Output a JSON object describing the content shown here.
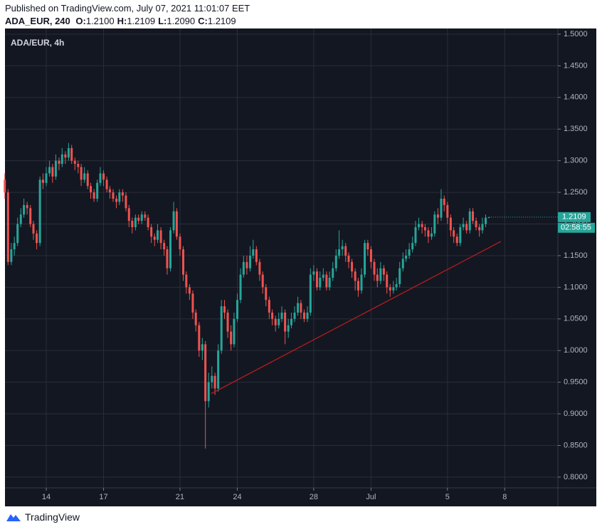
{
  "header": {
    "published": "Published on TradingView.com, July 07, 2021 11:01:07 EET",
    "symbol": "ADA_EUR, 240",
    "ohlc": [
      {
        "label": "O:",
        "value": "1.2100"
      },
      {
        "label": "H:",
        "value": "1.2109"
      },
      {
        "label": "L:",
        "value": "1.2090"
      },
      {
        "label": "C:",
        "value": "1.2109"
      }
    ]
  },
  "footer": {
    "brand": "TradingView"
  },
  "chart_data": {
    "type": "candlestick",
    "title": "ADA/EUR, 4h",
    "up_color": "#26a69a",
    "down_color": "#ef5350",
    "background": "#131722",
    "grid": true,
    "grid_color": "#2a2e39",
    "last_price_label": "1.2109",
    "countdown": "02:58:55",
    "xlim": [
      11.84,
      40.78
    ],
    "ylim": [
      0.783,
      1.509
    ],
    "xticks": [
      14,
      17,
      21,
      24,
      28,
      {
        "value": 31,
        "label": "Jul"
      },
      {
        "value": 35,
        "label": "5"
      },
      {
        "value": 38,
        "label": "8"
      }
    ],
    "yticks": [
      {
        "value": 0.8,
        "label": "0.8000"
      },
      {
        "value": 0.85,
        "label": "0.8500"
      },
      {
        "value": 0.9,
        "label": "0.9000"
      },
      {
        "value": 0.95,
        "label": "0.9500"
      },
      {
        "value": 1.0,
        "label": "1.0000"
      },
      {
        "value": 1.05,
        "label": "1.0500"
      },
      {
        "value": 1.1,
        "label": "1.1000"
      },
      {
        "value": 1.15,
        "label": "1.1500"
      },
      {
        "value": 1.2,
        "label": "1.2000"
      },
      {
        "value": 1.25,
        "label": "1.2500"
      },
      {
        "value": 1.3,
        "label": "1.3000"
      },
      {
        "value": 1.35,
        "label": "1.3500"
      },
      {
        "value": 1.4,
        "label": "1.4000"
      },
      {
        "value": 1.45,
        "label": "1.4500"
      },
      {
        "value": 1.5,
        "label": "1.5000"
      }
    ],
    "trendline": {
      "x": [
        22.64,
        37.8
      ],
      "y": [
        0.932,
        1.1725
      ],
      "color": "#b71c1c"
    },
    "x": [
      11.83,
      12,
      12.17,
      12.33,
      12.5,
      12.67,
      12.83,
      13,
      13.17,
      13.33,
      13.5,
      13.67,
      13.83,
      14,
      14.17,
      14.33,
      14.5,
      14.67,
      14.83,
      15,
      15.17,
      15.33,
      15.5,
      15.67,
      15.83,
      16,
      16.17,
      16.33,
      16.5,
      16.67,
      16.83,
      17,
      17.17,
      17.33,
      17.5,
      17.67,
      17.83,
      18,
      18.17,
      18.33,
      18.5,
      18.67,
      18.83,
      19,
      19.17,
      19.33,
      19.5,
      19.67,
      19.83,
      20,
      20.17,
      20.33,
      20.5,
      20.67,
      20.83,
      21,
      21.17,
      21.33,
      21.5,
      21.67,
      21.83,
      22,
      22.17,
      22.33,
      22.5,
      22.67,
      22.83,
      23,
      23.17,
      23.33,
      23.5,
      23.67,
      23.83,
      24,
      24.17,
      24.33,
      24.5,
      24.67,
      24.83,
      25,
      25.17,
      25.33,
      25.5,
      25.67,
      25.83,
      26,
      26.17,
      26.33,
      26.5,
      26.67,
      26.83,
      27,
      27.17,
      27.33,
      27.5,
      27.67,
      27.83,
      28,
      28.17,
      28.33,
      28.5,
      28.67,
      28.83,
      29,
      29.17,
      29.33,
      29.5,
      29.67,
      29.83,
      30,
      30.17,
      30.33,
      30.5,
      30.67,
      30.83,
      31,
      31.17,
      31.33,
      31.5,
      31.67,
      31.83,
      32,
      32.17,
      32.33,
      32.5,
      32.67,
      32.83,
      33,
      33.17,
      33.33,
      33.5,
      33.67,
      33.83,
      34,
      34.17,
      34.33,
      34.5,
      34.67,
      34.83,
      35,
      35.17,
      35.33,
      35.5,
      35.67,
      35.83,
      36,
      36.17,
      36.33,
      36.5,
      36.67,
      36.83,
      37,
      37.17
    ],
    "open": [
      1.27,
      1.25,
      1.14,
      1.16,
      1.17,
      1.2,
      1.215,
      1.23,
      1.225,
      1.2,
      1.185,
      1.17,
      1.27,
      1.265,
      1.28,
      1.29,
      1.275,
      1.3,
      1.295,
      1.31,
      1.305,
      1.32,
      1.3,
      1.295,
      1.29,
      1.27,
      1.28,
      1.26,
      1.25,
      1.24,
      1.265,
      1.28,
      1.27,
      1.255,
      1.25,
      1.24,
      1.235,
      1.25,
      1.245,
      1.225,
      1.205,
      1.195,
      1.21,
      1.205,
      1.215,
      1.21,
      1.195,
      1.18,
      1.175,
      1.19,
      1.17,
      1.16,
      1.13,
      1.19,
      1.22,
      1.18,
      1.16,
      1.12,
      1.1,
      1.09,
      1.06,
      1.04,
      1,
      1.01,
      0.92,
      0.95,
      0.96,
      0.94,
      1,
      1.07,
      1.06,
      1.03,
      1.01,
      1.05,
      1.08,
      1.12,
      1.14,
      1.13,
      1.15,
      1.16,
      1.14,
      1.12,
      1.1,
      1.08,
      1.06,
      1.05,
      1.04,
      1.05,
      1.06,
      1.03,
      1.04,
      1.05,
      1.06,
      1.075,
      1.06,
      1.05,
      1.06,
      1.12,
      1.125,
      1.1,
      1.115,
      1.12,
      1.1,
      1.115,
      1.13,
      1.15,
      1.16,
      1.165,
      1.15,
      1.14,
      1.125,
      1.11,
      1.095,
      1.12,
      1.17,
      1.16,
      1.14,
      1.12,
      1.11,
      1.13,
      1.12,
      1.1,
      1.095,
      1.1,
      1.105,
      1.13,
      1.145,
      1.15,
      1.16,
      1.17,
      1.195,
      1.2,
      1.195,
      1.19,
      1.18,
      1.185,
      1.215,
      1.21,
      1.24,
      1.23,
      1.21,
      1.19,
      1.18,
      1.17,
      1.195,
      1.2,
      1.19,
      1.22,
      1.205,
      1.195,
      1.19,
      1.2,
      1.21
    ],
    "high": [
      1.28,
      1.255,
      1.17,
      1.18,
      1.21,
      1.225,
      1.24,
      1.235,
      1.23,
      1.205,
      1.19,
      1.275,
      1.28,
      1.29,
      1.3,
      1.295,
      1.31,
      1.305,
      1.32,
      1.315,
      1.328,
      1.325,
      1.305,
      1.3,
      1.295,
      1.29,
      1.285,
      1.265,
      1.255,
      1.27,
      1.29,
      1.285,
      1.275,
      1.26,
      1.255,
      1.245,
      1.255,
      1.255,
      1.25,
      1.23,
      1.21,
      1.215,
      1.215,
      1.22,
      1.22,
      1.215,
      1.2,
      1.185,
      1.2,
      1.195,
      1.175,
      1.165,
      1.195,
      1.235,
      1.225,
      1.185,
      1.165,
      1.125,
      1.105,
      1.095,
      1.065,
      1.045,
      1.02,
      1.015,
      0.965,
      0.975,
      0.965,
      1.01,
      1.08,
      1.08,
      1.065,
      1.04,
      1.06,
      1.09,
      1.13,
      1.15,
      1.15,
      1.165,
      1.175,
      1.165,
      1.145,
      1.125,
      1.105,
      1.085,
      1.065,
      1.055,
      1.06,
      1.07,
      1.065,
      1.05,
      1.06,
      1.07,
      1.085,
      1.08,
      1.065,
      1.07,
      1.13,
      1.135,
      1.13,
      1.125,
      1.13,
      1.125,
      1.125,
      1.14,
      1.16,
      1.19,
      1.175,
      1.17,
      1.155,
      1.145,
      1.13,
      1.115,
      1.13,
      1.175,
      1.175,
      1.165,
      1.145,
      1.13,
      1.14,
      1.135,
      1.125,
      1.105,
      1.11,
      1.115,
      1.14,
      1.155,
      1.16,
      1.17,
      1.18,
      1.205,
      1.21,
      1.205,
      1.2,
      1.195,
      1.195,
      1.22,
      1.225,
      1.255,
      1.245,
      1.235,
      1.215,
      1.195,
      1.185,
      1.2,
      1.21,
      1.205,
      1.225,
      1.225,
      1.21,
      1.2,
      1.21,
      1.215,
      1.2109
    ],
    "low": [
      1.24,
      1.135,
      1.135,
      1.15,
      1.165,
      1.195,
      1.21,
      1.215,
      1.195,
      1.175,
      1.16,
      1.165,
      1.255,
      1.26,
      1.275,
      1.265,
      1.27,
      1.285,
      1.29,
      1.295,
      1.3,
      1.295,
      1.285,
      1.28,
      1.26,
      1.265,
      1.255,
      1.24,
      1.235,
      1.235,
      1.26,
      1.26,
      1.25,
      1.24,
      1.235,
      1.225,
      1.23,
      1.235,
      1.22,
      1.195,
      1.185,
      1.19,
      1.2,
      1.2,
      1.205,
      1.19,
      1.17,
      1.165,
      1.17,
      1.16,
      1.15,
      1.12,
      1.125,
      1.185,
      1.175,
      1.15,
      1.11,
      1.09,
      1.08,
      1.05,
      1.03,
      0.99,
      0.985,
      0.845,
      0.91,
      0.94,
      0.93,
      0.935,
      0.995,
      1.05,
      1.02,
      1,
      1.005,
      1.045,
      1.075,
      1.115,
      1.12,
      1.125,
      1.145,
      1.135,
      1.11,
      1.09,
      1.07,
      1.05,
      1.04,
      1.03,
      1.035,
      1.045,
      1.01,
      1.02,
      1.035,
      1.045,
      1.055,
      1.05,
      1.045,
      1.045,
      1.055,
      1.11,
      1.095,
      1.095,
      1.11,
      1.095,
      1.095,
      1.11,
      1.125,
      1.145,
      1.15,
      1.14,
      1.13,
      1.115,
      1.095,
      1.085,
      1.09,
      1.115,
      1.15,
      1.13,
      1.11,
      1.1,
      1.105,
      1.11,
      1.09,
      1.085,
      1.09,
      1.095,
      1.1,
      1.125,
      1.14,
      1.145,
      1.155,
      1.165,
      1.19,
      1.185,
      1.18,
      1.17,
      1.175,
      1.18,
      1.2,
      1.205,
      1.22,
      1.2,
      1.18,
      1.17,
      1.165,
      1.165,
      1.19,
      1.185,
      1.185,
      1.2,
      1.19,
      1.18,
      1.185,
      1.195,
      1.209
    ],
    "close": [
      1.25,
      1.14,
      1.16,
      1.17,
      1.2,
      1.215,
      1.23,
      1.225,
      1.2,
      1.185,
      1.17,
      1.27,
      1.265,
      1.28,
      1.29,
      1.275,
      1.3,
      1.295,
      1.31,
      1.305,
      1.32,
      1.3,
      1.295,
      1.29,
      1.27,
      1.28,
      1.26,
      1.25,
      1.24,
      1.265,
      1.28,
      1.27,
      1.255,
      1.25,
      1.24,
      1.235,
      1.25,
      1.245,
      1.225,
      1.205,
      1.195,
      1.21,
      1.205,
      1.215,
      1.21,
      1.195,
      1.18,
      1.175,
      1.19,
      1.17,
      1.16,
      1.13,
      1.19,
      1.22,
      1.18,
      1.16,
      1.12,
      1.1,
      1.09,
      1.06,
      1.04,
      1,
      1.01,
      0.92,
      0.95,
      0.96,
      0.94,
      1,
      1.07,
      1.06,
      1.03,
      1.01,
      1.05,
      1.08,
      1.12,
      1.14,
      1.13,
      1.15,
      1.16,
      1.14,
      1.12,
      1.1,
      1.08,
      1.06,
      1.05,
      1.04,
      1.05,
      1.06,
      1.03,
      1.04,
      1.05,
      1.06,
      1.075,
      1.06,
      1.05,
      1.06,
      1.12,
      1.125,
      1.1,
      1.115,
      1.12,
      1.1,
      1.115,
      1.13,
      1.15,
      1.16,
      1.165,
      1.15,
      1.14,
      1.125,
      1.11,
      1.095,
      1.12,
      1.17,
      1.16,
      1.14,
      1.12,
      1.11,
      1.13,
      1.12,
      1.1,
      1.095,
      1.1,
      1.105,
      1.13,
      1.145,
      1.15,
      1.16,
      1.17,
      1.195,
      1.2,
      1.195,
      1.19,
      1.18,
      1.185,
      1.215,
      1.21,
      1.24,
      1.23,
      1.21,
      1.19,
      1.18,
      1.17,
      1.195,
      1.2,
      1.19,
      1.22,
      1.205,
      1.195,
      1.19,
      1.2,
      1.21,
      1.2109
    ]
  }
}
